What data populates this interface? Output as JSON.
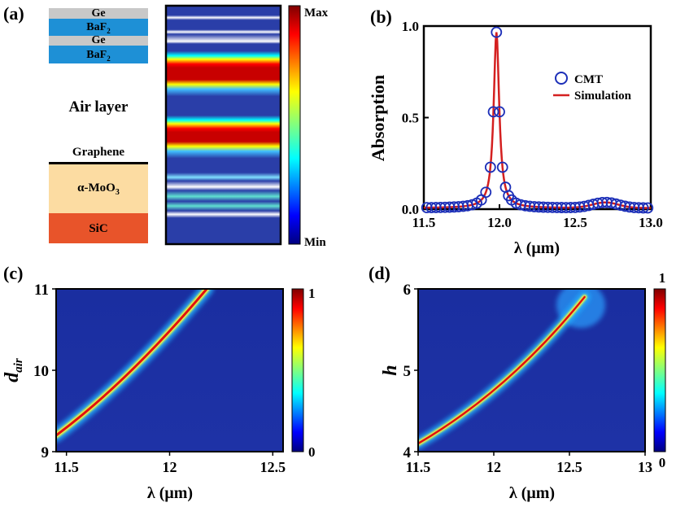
{
  "panels": {
    "a": {
      "label": "(a)",
      "layers": [
        "Ge",
        "BaF",
        "Ge",
        "BaF",
        "Air layer",
        "Graphene",
        "α-MoO",
        "SiC"
      ],
      "sub_2": "2",
      "sub_3": "3",
      "colorbar": {
        "max": "Max",
        "min": "Min"
      }
    },
    "b": {
      "label": "(b)"
    },
    "c": {
      "label": "(c)"
    },
    "d": {
      "label": "(d)"
    }
  },
  "chart_data": [
    {
      "type": "line",
      "panel": "b",
      "xlabel": "λ (μm)",
      "ylabel": "Absorption",
      "xlim": [
        11.5,
        13.0
      ],
      "ylim": [
        0,
        1.0
      ],
      "xticks": [
        "11.5",
        "12.0",
        "12.5",
        "13.0"
      ],
      "yticks": [
        "0.0",
        "0.5",
        "1.0"
      ],
      "legend": [
        "CMT",
        "Simulation"
      ],
      "peak": {
        "x": 11.98,
        "y": 0.96,
        "hwhm": 0.022
      },
      "series": [
        {
          "name": "CMT",
          "style": "markers",
          "x": [
            11.52,
            11.55,
            11.58,
            11.61,
            11.64,
            11.67,
            11.7,
            11.73,
            11.76,
            11.79,
            11.82,
            11.85,
            11.88,
            11.91,
            11.94,
            11.96,
            11.98,
            12.0,
            12.02,
            12.04,
            12.06,
            12.08,
            12.11,
            12.14,
            12.17,
            12.2,
            12.23,
            12.26,
            12.29,
            12.32,
            12.35,
            12.38,
            12.41,
            12.44,
            12.47,
            12.5,
            12.53,
            12.56,
            12.59,
            12.62,
            12.65,
            12.68,
            12.71,
            12.74,
            12.77,
            12.8,
            12.83,
            12.86,
            12.89,
            12.92,
            12.95,
            12.98
          ]
        },
        {
          "name": "Simulation",
          "style": "line",
          "color": "#d42020"
        }
      ]
    },
    {
      "type": "heatmap",
      "panel": "c",
      "xlabel": "λ (μm)",
      "ylabel": "d",
      "ylabel_sub": "air",
      "xlim": [
        11.45,
        12.55
      ],
      "ylim": [
        9,
        11
      ],
      "xticks": [
        "11.5",
        "12",
        "12.5"
      ],
      "yticks": [
        "9",
        "10",
        "11"
      ],
      "colorbar": {
        "min": "0",
        "max": "1"
      },
      "ridge": {
        "x": [
          11.45,
          11.8,
          12.18
        ],
        "y": [
          9.2,
          9.86,
          11.0
        ]
      }
    },
    {
      "type": "heatmap",
      "panel": "d",
      "xlabel": "λ (μm)",
      "ylabel": "h",
      "xlim": [
        11.5,
        13.0
      ],
      "ylim": [
        4,
        6
      ],
      "xticks": [
        "11.5",
        "12",
        "12.5",
        "13"
      ],
      "yticks": [
        "4",
        "5",
        "6"
      ],
      "colorbar": {
        "min": "0",
        "max": "1"
      },
      "ridge": {
        "x": [
          11.5,
          12.1,
          12.6
        ],
        "y": [
          4.1,
          4.75,
          5.9
        ]
      }
    }
  ],
  "colors": {
    "jet_dark": "#00007f",
    "jet_bg": "#2a3ea8",
    "red": "#d42020",
    "blue_marker": "#1c2fb8",
    "ge": "#c8c8c8",
    "baf2": "#1e90d6",
    "moo3": "#fcdca2",
    "sic": "#e8542a"
  }
}
